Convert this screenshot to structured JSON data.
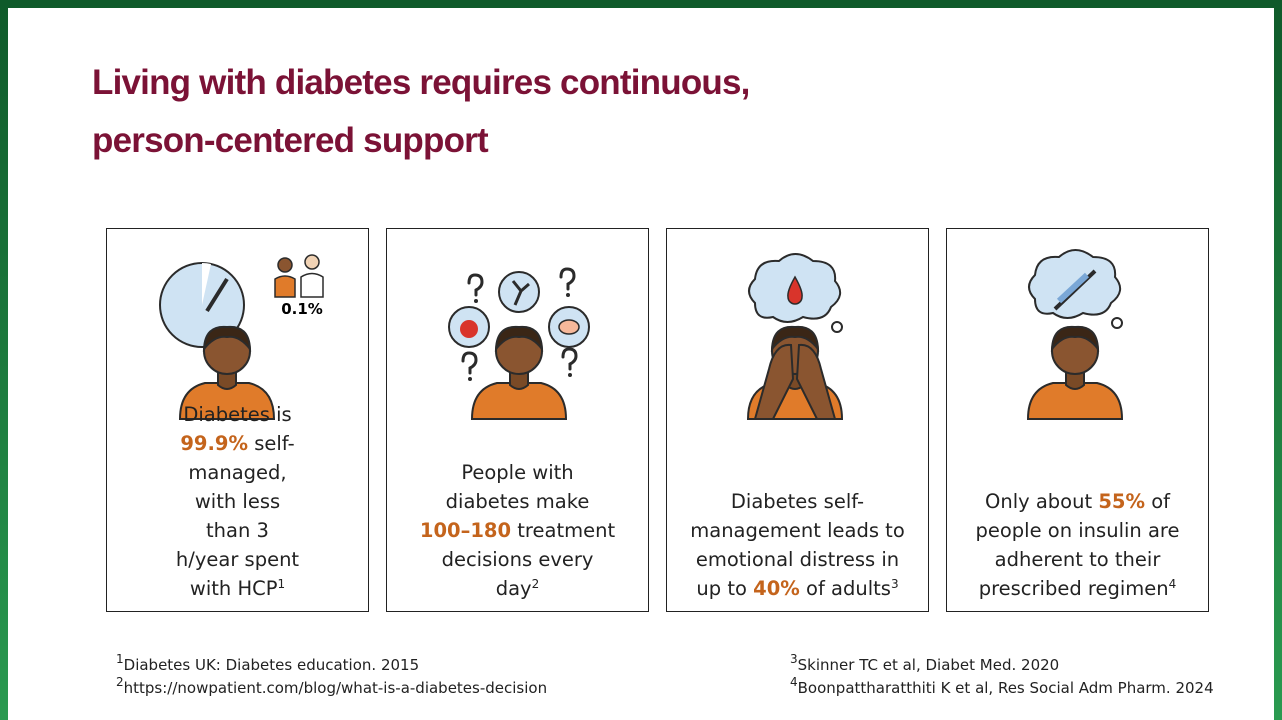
{
  "header": {
    "title_lines": [
      "Living with diabetes requires continuous,",
      "person-centered support"
    ]
  },
  "highlight_color": "#c4641c",
  "cards": [
    {
      "icon_label": "0.1%",
      "segments": [
        {
          "text": "Diabetes is "
        },
        {
          "text": "99.9%",
          "style": "highlight"
        },
        {
          "text": " self-managed, with less than 3 h/year spent with HCP"
        },
        {
          "text": "1",
          "style": "superscript"
        }
      ]
    },
    {
      "segments": [
        {
          "text": "People with diabetes make "
        },
        {
          "text": "100–180",
          "style": "highlight"
        },
        {
          "text": " treatment decisions every day"
        },
        {
          "text": "2",
          "style": "superscript"
        }
      ]
    },
    {
      "segments": [
        {
          "text": "Diabetes self-management leads to emotional distress in up to "
        },
        {
          "text": "40%",
          "style": "highlight"
        },
        {
          "text": " of adults"
        },
        {
          "text": "3",
          "style": "superscript"
        }
      ]
    },
    {
      "segments": [
        {
          "text": "Only about "
        },
        {
          "text": "55%",
          "style": "highlight"
        },
        {
          "text": " of people on insulin are adherent to their prescribed regimen"
        },
        {
          "text": "4",
          "style": "superscript"
        }
      ]
    }
  ],
  "footnotes": [
    {
      "number": "1",
      "text": "Diabetes UK: Diabetes education. 2015"
    },
    {
      "number": "2",
      "text": "https://nowpatient.com/blog/what-is-a-diabetes-decision"
    },
    {
      "number": "3",
      "text": "Skinner TC et al, Diabet Med. 2020"
    },
    {
      "number": "4",
      "text": "Boonpattharatthiti K et al, Res Social Adm Pharm. 2024"
    }
  ]
}
